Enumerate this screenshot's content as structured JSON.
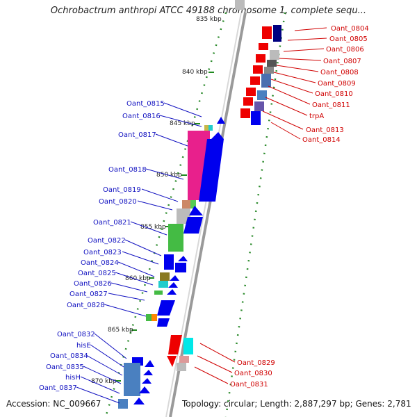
{
  "title": "Ochrobactrum anthropi ATCC 49188 chromosome 1, complete sequ...",
  "footer": {
    "accession": "Accession: NC_009667",
    "topology": "Topology: circular; Length: 2,887,297 bp; Genes: 2,781"
  },
  "scale_labels": [
    "835 kbp",
    "840 kbp",
    "845 kbp",
    "850 kbp",
    "855 kbp",
    "860 kbp",
    "865 kbp",
    "870 kbp"
  ],
  "left_genes": [
    "Oant_0815",
    "Oant_0816",
    "Oant_0817",
    "Oant_0818",
    "Oant_0819",
    "Oant_0820",
    "Oant_0821",
    "Oant_0822",
    "Oant_0823",
    "Oant_0824",
    "Oant_0825",
    "Oant_0826",
    "Oant_0827",
    "Oant_0828",
    "Oant_0832",
    "hisE",
    "Oant_0834",
    "Oant_0835",
    "hisH",
    "Oant_0837"
  ],
  "right_genes": [
    "Oant_0804",
    "Oant_0805",
    "Oant_0806",
    "Oant_0807",
    "Oant_0808",
    "Oant_0809",
    "Oant_0810",
    "Oant_0811",
    "trpA",
    "Oant_0813",
    "Oant_0814",
    "Oant_0829",
    "Oant_0830",
    "Oant_0831"
  ],
  "colors": {
    "left_label": "#1010c0",
    "right_label": "#d00000",
    "forward_gene": "#0000ee",
    "reverse_gene": "#ee0000",
    "axis": "#888888"
  }
}
